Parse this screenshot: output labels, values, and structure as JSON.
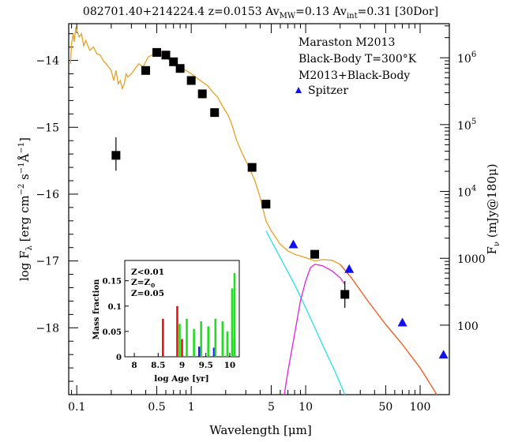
{
  "chart_data": [
    {
      "type": "scatter",
      "title_parts": [
        "082701.40+214224.4  z=0.0153  Av",
        "MW",
        "=0.13  Av",
        "int",
        "=0.31  [30Dor]"
      ],
      "xlabel_pre": "Wavelength [",
      "xlabel_mu": "μ",
      "xlabel_post": "m]",
      "ylabel_pre": "log F",
      "ylabel_sub": "λ",
      "ylabel_mid": " [erg cm",
      "ylabel_sup1": "−2",
      "ylabel_mid2": " s",
      "ylabel_sup2": "−1",
      "ylabel_mid3": "Å",
      "ylabel_sup3": "−1",
      "ylabel_end": "]",
      "y2label_pre": "F",
      "y2label_sub": "ν",
      "y2label_post": "  (mJy@180μ)",
      "xscale": "log",
      "xlim": [
        0.085,
        180
      ],
      "ylim": [
        -19.0,
        -13.45
      ],
      "xticks": [
        {
          "v": 0.1,
          "label": "0.1"
        },
        {
          "v": 0.5,
          "label": "0.5"
        },
        {
          "v": 1,
          "label": "1"
        },
        {
          "v": 5,
          "label": "5"
        },
        {
          "v": 10,
          "label": "10"
        },
        {
          "v": 50,
          "label": "50"
        },
        {
          "v": 100,
          "label": "100"
        }
      ],
      "yticks": [
        {
          "v": -14,
          "label": "−14"
        },
        {
          "v": -15,
          "label": "−15"
        },
        {
          "v": -16,
          "label": "−16"
        },
        {
          "v": -17,
          "label": "−17"
        },
        {
          "v": -18,
          "label": "−18"
        }
      ],
      "y2ticks": [
        {
          "exp": 6,
          "label_base": "10",
          "label_sup": "6"
        },
        {
          "exp": 5,
          "label_base": "10",
          "label_sup": "5"
        },
        {
          "exp": 4,
          "label_base": "10",
          "label_sup": "4"
        },
        {
          "exp": 3,
          "label": "1000"
        },
        {
          "exp": 2,
          "label": "100"
        }
      ],
      "legend_position": "top-right",
      "legend": [
        {
          "label": "Maraston M2013",
          "color": "#22e0e8"
        },
        {
          "label": "Black-Body T=300°K",
          "color": "#e020e0"
        },
        {
          "label": "M2013+Black-Body",
          "color": "#e8a020"
        },
        {
          "label": "Spitzer",
          "color": "#1010f0",
          "marker": "triangle"
        }
      ],
      "series": [
        {
          "name": "Maraston M2013",
          "kind": "line",
          "color": "#22e0e8",
          "points": [
            [
              4.5,
              -16.55
            ],
            [
              6,
              -16.95
            ],
            [
              8,
              -17.35
            ],
            [
              10,
              -17.7
            ],
            [
              14,
              -18.25
            ],
            [
              18,
              -18.65
            ],
            [
              22,
              -19.0
            ]
          ]
        },
        {
          "name": "Black-Body T=300°K",
          "kind": "line",
          "color": "#e020e0",
          "points": [
            [
              6.5,
              -19.0
            ],
            [
              7,
              -18.65
            ],
            [
              8,
              -18.1
            ],
            [
              9,
              -17.6
            ],
            [
              10,
              -17.3
            ],
            [
              11,
              -17.1
            ],
            [
              12,
              -17.05
            ],
            [
              14,
              -17.07
            ],
            [
              17,
              -17.15
            ],
            [
              20,
              -17.25
            ],
            [
              22,
              -17.35
            ]
          ]
        },
        {
          "name": "M2013+Black-Body",
          "kind": "line",
          "color": "#e8a020",
          "points": [
            [
              0.088,
              -14.05
            ],
            [
              0.09,
              -13.75
            ],
            [
              0.093,
              -13.6
            ],
            [
              0.095,
              -13.72
            ],
            [
              0.098,
              -13.5
            ],
            [
              0.1,
              -13.55
            ],
            [
              0.105,
              -13.65
            ],
            [
              0.11,
              -13.6
            ],
            [
              0.115,
              -13.78
            ],
            [
              0.12,
              -13.7
            ],
            [
              0.13,
              -13.85
            ],
            [
              0.14,
              -13.8
            ],
            [
              0.15,
              -13.9
            ],
            [
              0.16,
              -13.92
            ],
            [
              0.17,
              -14.0
            ],
            [
              0.18,
              -14.05
            ],
            [
              0.2,
              -14.15
            ],
            [
              0.21,
              -14.3
            ],
            [
              0.22,
              -14.15
            ],
            [
              0.23,
              -14.35
            ],
            [
              0.24,
              -14.3
            ],
            [
              0.25,
              -14.42
            ],
            [
              0.26,
              -14.35
            ],
            [
              0.27,
              -14.2
            ],
            [
              0.28,
              -14.25
            ],
            [
              0.3,
              -14.2
            ],
            [
              0.33,
              -14.1
            ],
            [
              0.35,
              -14.05
            ],
            [
              0.38,
              -14.1
            ],
            [
              0.4,
              -14.02
            ],
            [
              0.42,
              -13.95
            ],
            [
              0.45,
              -13.92
            ],
            [
              0.5,
              -13.88
            ],
            [
              0.55,
              -13.92
            ],
            [
              0.6,
              -13.95
            ],
            [
              0.65,
              -14.0
            ],
            [
              0.7,
              -14.05
            ],
            [
              0.8,
              -14.1
            ],
            [
              0.9,
              -14.15
            ],
            [
              1.0,
              -14.2
            ],
            [
              1.2,
              -14.3
            ],
            [
              1.4,
              -14.38
            ],
            [
              1.5,
              -14.45
            ],
            [
              1.6,
              -14.5
            ],
            [
              1.7,
              -14.55
            ],
            [
              1.9,
              -14.7
            ],
            [
              2.1,
              -14.82
            ],
            [
              2.2,
              -14.9
            ],
            [
              2.3,
              -15.0
            ],
            [
              2.5,
              -15.2
            ],
            [
              2.8,
              -15.4
            ],
            [
              3.2,
              -15.6
            ],
            [
              3.6,
              -15.8
            ],
            [
              4.0,
              -16.05
            ],
            [
              4.5,
              -16.4
            ],
            [
              5,
              -16.55
            ],
            [
              6,
              -16.75
            ],
            [
              7,
              -16.85
            ],
            [
              8,
              -16.9
            ],
            [
              10,
              -16.95
            ],
            [
              12,
              -17.0
            ],
            [
              14,
              -16.98
            ],
            [
              17,
              -16.99
            ],
            [
              20,
              -17.05
            ],
            [
              25,
              -17.25
            ],
            [
              35,
              -17.6
            ],
            [
              50,
              -17.95
            ],
            [
              70,
              -18.25
            ],
            [
              100,
              -18.6
            ],
            [
              140,
              -19.0
            ]
          ]
        },
        {
          "name": "",
          "kind": "line",
          "color": "#f06030",
          "points": [
            [
              20,
              -17.05
            ],
            [
              25,
              -17.25
            ],
            [
              35,
              -17.6
            ],
            [
              50,
              -17.95
            ],
            [
              70,
              -18.25
            ],
            [
              100,
              -18.6
            ],
            [
              140,
              -19.0
            ]
          ]
        },
        {
          "name": "",
          "kind": "squares",
          "color": "#000000",
          "points": [
            [
              0.22,
              -15.42
            ],
            [
              0.4,
              -14.15
            ],
            [
              0.5,
              -13.88
            ],
            [
              0.6,
              -13.92
            ],
            [
              0.7,
              -14.02
            ],
            [
              0.8,
              -14.12
            ],
            [
              1.0,
              -14.3
            ],
            [
              1.25,
              -14.5
            ],
            [
              1.6,
              -14.78
            ],
            [
              3.4,
              -15.6
            ],
            [
              4.5,
              -16.15
            ],
            [
              12,
              -16.9
            ],
            [
              22,
              -17.5
            ]
          ],
          "errors": [
            [
              0.22,
              -15.15,
              -15.65
            ],
            [
              22,
              -17.3,
              -17.7
            ]
          ]
        },
        {
          "name": "Spitzer",
          "kind": "triangles",
          "color": "#1010f0",
          "points": [
            [
              7.8,
              -16.75
            ],
            [
              24,
              -17.12
            ],
            [
              70,
              -17.92
            ],
            [
              160,
              -18.4
            ]
          ]
        }
      ]
    },
    {
      "type": "bar",
      "inset": true,
      "xlabel": "log Age [yr]",
      "ylabel": "Mass fraction",
      "xlim": [
        7.8,
        10.2
      ],
      "ylim": [
        0,
        0.19
      ],
      "xticks": [
        {
          "v": 8,
          "label": "8"
        },
        {
          "v": 8.5,
          "label": "8.5"
        },
        {
          "v": 9,
          "label": "9"
        },
        {
          "v": 9.5,
          "label": "9.5"
        },
        {
          "v": 10,
          "label": "10"
        }
      ],
      "yticks": [
        {
          "v": 0,
          "label": "0"
        },
        {
          "v": 0.05,
          "label": "0.05"
        },
        {
          "v": 0.1,
          "label": "0.1"
        },
        {
          "v": 0.15,
          "label": "0.15"
        }
      ],
      "legend_position": "top-left",
      "legend_items": [
        {
          "text": "Z<0.01",
          "color": "#1a1aff"
        },
        {
          "text_pre": "Z=Z",
          "text_sub": "⊙",
          "color": "#22dd22"
        },
        {
          "text": "Z=0.05",
          "color": "#ee1111"
        }
      ],
      "series": [
        {
          "name": "Z<0.01",
          "color": "#1a1aff",
          "x": [
            9.36,
            9.67,
            10.1
          ],
          "values": [
            0.02,
            0.018,
            0.035
          ]
        },
        {
          "name": "Z=Z⊙",
          "color": "#22dd22",
          "x": [
            8.95,
            9.1,
            9.25,
            9.4,
            9.55,
            9.7,
            9.85,
            9.95,
            10.05,
            10.1
          ],
          "values": [
            0.065,
            0.075,
            0.055,
            0.07,
            0.06,
            0.075,
            0.07,
            0.05,
            0.135,
            0.165
          ]
        },
        {
          "name": "Z=0.05",
          "color": "#ee1111",
          "x": [
            8.6,
            8.9,
            9.0
          ],
          "values": [
            0.075,
            0.1,
            0.035
          ]
        }
      ]
    }
  ]
}
